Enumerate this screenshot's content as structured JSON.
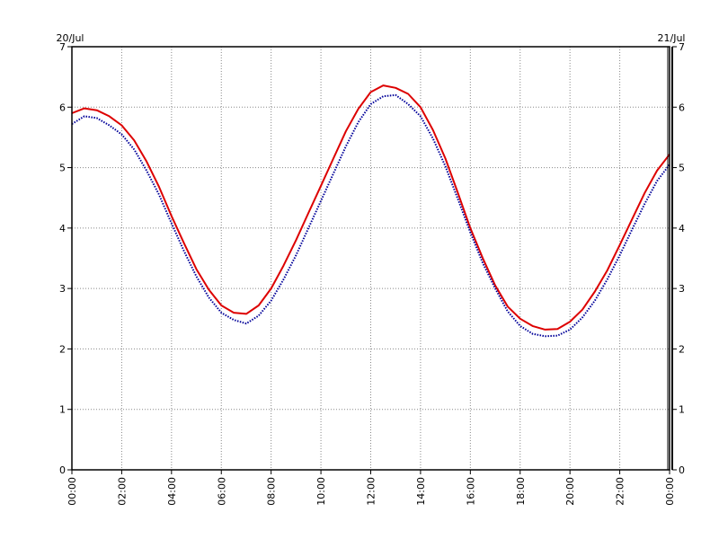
{
  "chart_data": {
    "type": "line",
    "title": "",
    "xlabel": "",
    "ylabel": "",
    "date_left": "20/Jul",
    "date_right": "21/Jul",
    "x_ticks": [
      "00:00",
      "02:00",
      "04:00",
      "06:00",
      "08:00",
      "10:00",
      "12:00",
      "14:00",
      "16:00",
      "18:00",
      "20:00",
      "22:00",
      "00:00"
    ],
    "y_ticks": [
      "0",
      "1",
      "2",
      "3",
      "4",
      "5",
      "6",
      "7"
    ],
    "ylim": [
      0,
      7
    ],
    "xlim_hours": [
      0,
      24
    ],
    "grid": true,
    "colors": {
      "series_1": "#dd0000",
      "series_2": "#000099",
      "grid": "#888888"
    },
    "series": [
      {
        "style": "solid",
        "x_hours": [
          0,
          0.5,
          1,
          1.5,
          2,
          2.5,
          3,
          3.5,
          4,
          4.5,
          5,
          5.5,
          6,
          6.5,
          7,
          7.5,
          8,
          8.5,
          9,
          9.5,
          10,
          10.5,
          11,
          11.5,
          12,
          12.5,
          13,
          13.5,
          14,
          14.5,
          15,
          15.5,
          16,
          16.5,
          17,
          17.5,
          18,
          18.5,
          19,
          19.5,
          20,
          20.5,
          21,
          21.5,
          22,
          22.5,
          23,
          23.5,
          24
        ],
        "values": [
          5.9,
          5.98,
          5.95,
          5.85,
          5.7,
          5.45,
          5.1,
          4.68,
          4.2,
          3.75,
          3.32,
          2.98,
          2.72,
          2.6,
          2.58,
          2.72,
          3.0,
          3.38,
          3.8,
          4.25,
          4.7,
          5.15,
          5.6,
          5.97,
          6.25,
          6.36,
          6.32,
          6.22,
          6.0,
          5.62,
          5.15,
          4.58,
          4.0,
          3.5,
          3.05,
          2.7,
          2.5,
          2.38,
          2.32,
          2.33,
          2.45,
          2.65,
          2.95,
          3.3,
          3.72,
          4.15,
          4.58,
          4.95,
          5.22
        ]
      },
      {
        "style": "dotted",
        "x_hours": [
          0,
          0.5,
          1,
          1.5,
          2,
          2.5,
          3,
          3.5,
          4,
          4.5,
          5,
          5.5,
          6,
          6.5,
          7,
          7.5,
          8,
          8.5,
          9,
          9.5,
          10,
          10.5,
          11,
          11.5,
          12,
          12.5,
          13,
          13.5,
          14,
          14.5,
          15,
          15.5,
          16,
          16.5,
          17,
          17.5,
          18,
          18.5,
          19,
          19.5,
          20,
          20.5,
          21,
          21.5,
          22,
          22.5,
          23,
          23.5,
          24
        ],
        "values": [
          5.72,
          5.85,
          5.82,
          5.7,
          5.55,
          5.3,
          4.95,
          4.55,
          4.08,
          3.62,
          3.2,
          2.85,
          2.6,
          2.48,
          2.42,
          2.55,
          2.8,
          3.15,
          3.55,
          4.0,
          4.45,
          4.9,
          5.35,
          5.75,
          6.05,
          6.18,
          6.2,
          6.05,
          5.85,
          5.48,
          5.02,
          4.48,
          3.93,
          3.42,
          3.0,
          2.62,
          2.38,
          2.25,
          2.21,
          2.22,
          2.32,
          2.52,
          2.8,
          3.15,
          3.55,
          3.98,
          4.4,
          4.78,
          5.05
        ]
      }
    ]
  }
}
